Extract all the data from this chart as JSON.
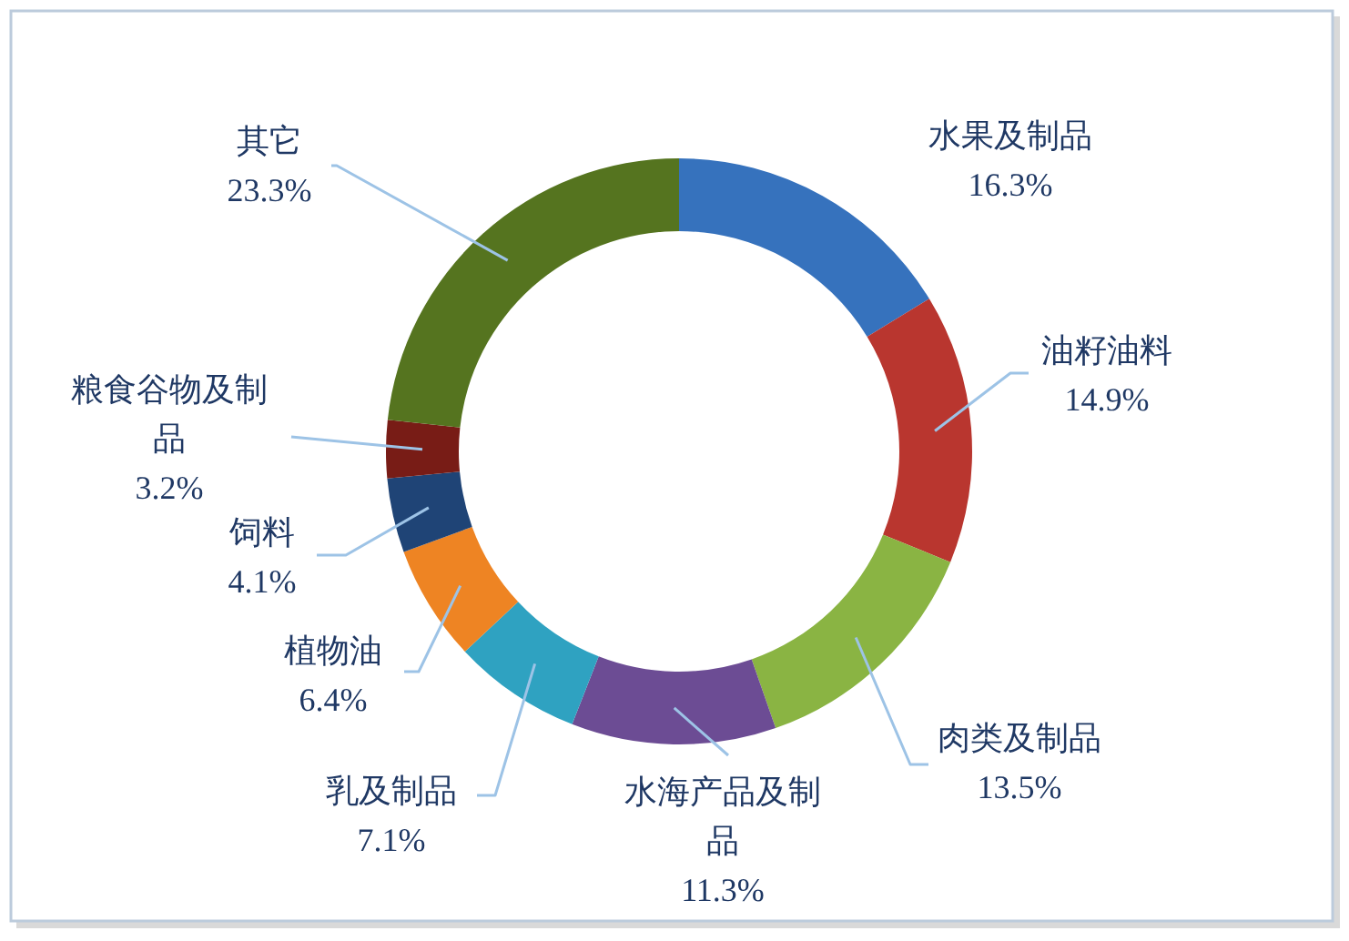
{
  "chart_data": {
    "type": "donut",
    "categories": [
      "水果及制品",
      "油籽油料",
      "肉类及制品",
      "水海产品及制品",
      "乳及制品",
      "植物油",
      "饲料",
      "粮食谷物及制品",
      "其它"
    ],
    "values": [
      16.3,
      14.9,
      13.5,
      11.3,
      7.1,
      6.4,
      4.1,
      3.2,
      23.3
    ],
    "value_labels": [
      "16.3%",
      "14.9%",
      "13.5%",
      "11.3%",
      "7.1%",
      "6.4%",
      "4.1%",
      "3.2%",
      "23.3%"
    ],
    "colors": [
      "#3672bd",
      "#b9362f",
      "#8ab443",
      "#6c4c94",
      "#2fa2c1",
      "#ee8423",
      "#1f4476",
      "#781c16",
      "#55741f"
    ]
  }
}
